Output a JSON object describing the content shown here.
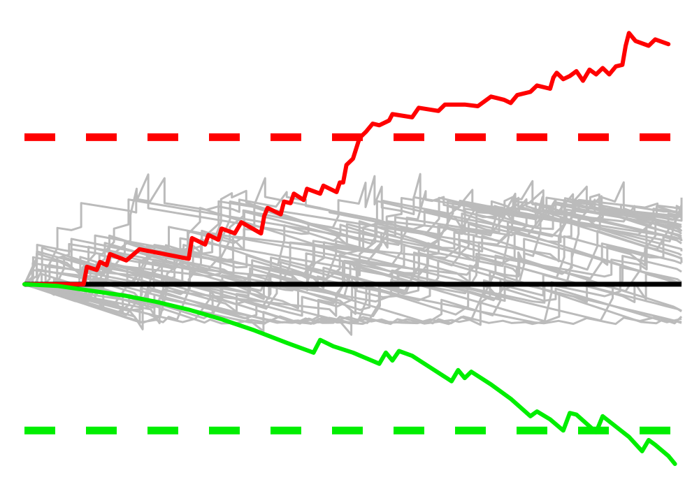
{
  "chart_data": {
    "type": "line",
    "title": "",
    "xlabel": "",
    "ylabel": "",
    "xlim": [
      0,
      100
    ],
    "ylim": [
      -12,
      17
    ],
    "grid": false,
    "legend": "none",
    "colors": {
      "upper": "#ff0000",
      "lower": "#00ee00",
      "background": "#bbbbbb",
      "baseline": "#000000"
    },
    "thresholds": [
      {
        "name": "upper-threshold",
        "y": 9.25,
        "color": "#ff0000",
        "style": "dashed"
      },
      {
        "name": "lower-threshold",
        "y": -9.2,
        "color": "#00ee00",
        "style": "dashed"
      }
    ],
    "baseline": {
      "y": 0,
      "color": "#000000"
    },
    "highlight_series": [
      {
        "key": "upper",
        "color": "#ff0000",
        "points": [
          [
            0,
            0
          ],
          [
            9,
            0
          ],
          [
            9.5,
            1.1
          ],
          [
            11,
            0.9
          ],
          [
            11.5,
            1.4
          ],
          [
            12.5,
            1.2
          ],
          [
            13,
            1.9
          ],
          [
            15.5,
            1.5
          ],
          [
            17.5,
            2.2
          ],
          [
            25,
            1.6
          ],
          [
            25.5,
            2.9
          ],
          [
            27.5,
            2.5
          ],
          [
            28,
            3.1
          ],
          [
            29.5,
            2.8
          ],
          [
            30,
            3.5
          ],
          [
            32,
            3.2
          ],
          [
            33,
            3.9
          ],
          [
            36,
            3.2
          ],
          [
            36.5,
            4.3
          ],
          [
            37,
            4.8
          ],
          [
            39,
            4.4
          ],
          [
            39.5,
            5.2
          ],
          [
            40.5,
            5.1
          ],
          [
            41,
            5.7
          ],
          [
            42.5,
            5.3
          ],
          [
            43,
            6.0
          ],
          [
            45,
            5.7
          ],
          [
            45.5,
            6.2
          ],
          [
            47.5,
            5.8
          ],
          [
            48,
            6.4
          ],
          [
            48.5,
            6.4
          ],
          [
            49,
            7.5
          ],
          [
            50,
            7.9
          ],
          [
            51,
            9.2
          ],
          [
            52,
            9.6
          ],
          [
            53,
            10.1
          ],
          [
            54,
            10.0
          ],
          [
            55.5,
            10.3
          ],
          [
            56,
            10.7
          ],
          [
            59,
            10.5
          ],
          [
            60,
            11.1
          ],
          [
            63,
            10.9
          ],
          [
            64,
            11.3
          ],
          [
            67,
            11.3
          ],
          [
            69,
            11.2
          ],
          [
            71,
            11.8
          ],
          [
            72,
            11.7
          ],
          [
            73,
            11.6
          ],
          [
            74,
            11.4
          ],
          [
            75,
            11.9
          ],
          [
            77,
            12.1
          ],
          [
            78,
            12.5
          ],
          [
            80,
            12.3
          ],
          [
            80.5,
            13.0
          ],
          [
            81,
            13.3
          ],
          [
            82,
            12.9
          ],
          [
            83,
            13.1
          ],
          [
            84,
            13.4
          ],
          [
            85,
            12.8
          ],
          [
            86,
            13.5
          ],
          [
            87,
            13.2
          ],
          [
            88,
            13.6
          ],
          [
            89,
            13.2
          ],
          [
            90,
            13.7
          ],
          [
            91,
            13.8
          ],
          [
            91.5,
            15.0
          ],
          [
            92,
            15.8
          ],
          [
            93,
            15.3
          ],
          [
            95,
            15.0
          ],
          [
            96,
            15.4
          ],
          [
            98,
            15.1
          ]
        ]
      },
      {
        "key": "lower",
        "color": "#00ee00",
        "points": [
          [
            0,
            0
          ],
          [
            5,
            -0.1
          ],
          [
            10,
            -0.4
          ],
          [
            15,
            -0.7
          ],
          [
            20,
            -1.1
          ],
          [
            25,
            -1.6
          ],
          [
            30,
            -2.2
          ],
          [
            35,
            -2.9
          ],
          [
            40,
            -3.7
          ],
          [
            44,
            -4.3
          ],
          [
            45,
            -3.5
          ],
          [
            47,
            -3.9
          ],
          [
            50,
            -4.3
          ],
          [
            54,
            -5.0
          ],
          [
            55,
            -4.3
          ],
          [
            56,
            -4.8
          ],
          [
            57,
            -4.2
          ],
          [
            59,
            -4.5
          ],
          [
            62,
            -5.3
          ],
          [
            65,
            -6.1
          ],
          [
            66,
            -5.4
          ],
          [
            67,
            -5.9
          ],
          [
            68,
            -5.5
          ],
          [
            71,
            -6.3
          ],
          [
            74,
            -7.2
          ],
          [
            77,
            -8.3
          ],
          [
            78,
            -8.0
          ],
          [
            80,
            -8.5
          ],
          [
            82,
            -9.2
          ],
          [
            83,
            -8.1
          ],
          [
            84,
            -8.2
          ],
          [
            87,
            -9.3
          ],
          [
            88,
            -8.3
          ],
          [
            92,
            -9.6
          ],
          [
            94,
            -10.5
          ],
          [
            95,
            -9.8
          ],
          [
            96,
            -10.1
          ],
          [
            98,
            -10.8
          ],
          [
            99,
            -11.3
          ]
        ]
      }
    ],
    "background_series_count": 40
  }
}
